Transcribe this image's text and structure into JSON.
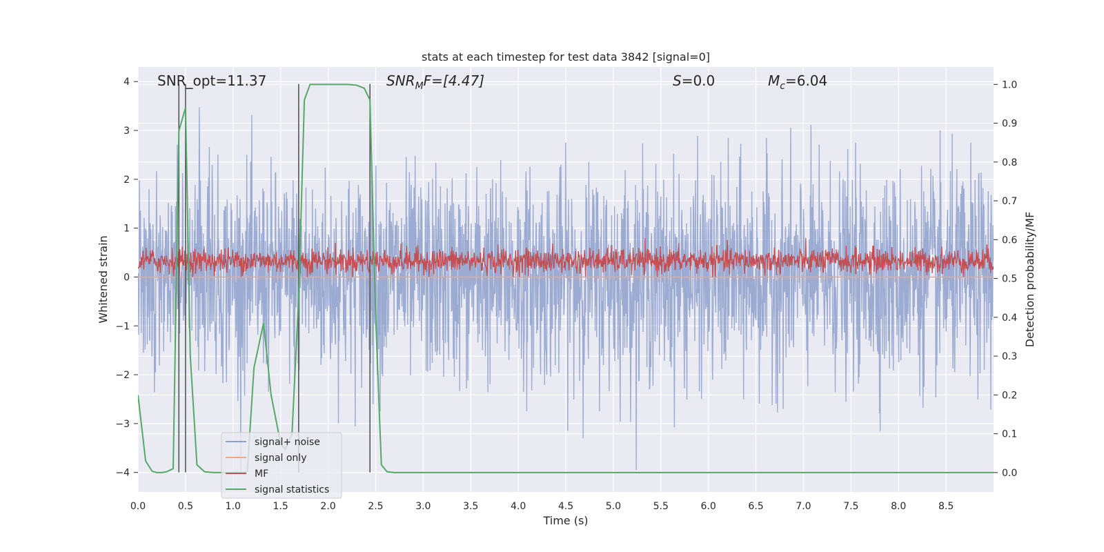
{
  "chart_data": {
    "type": "line",
    "title": "stats at each timestep for test data 3842 [signal=0]",
    "xlabel": "Time (s)",
    "ylabel_left": "Whitened strain",
    "ylabel_right": "Detection probability/MF",
    "xlim": [
      0,
      9.0
    ],
    "ylim_left": [
      -4.4,
      4.3
    ],
    "ylim_right": [
      -0.05,
      1.045
    ],
    "x_ticks": [
      "0.0",
      "0.5",
      "1.0",
      "1.5",
      "2.0",
      "2.5",
      "3.0",
      "3.5",
      "4.0",
      "4.5",
      "5.0",
      "5.5",
      "6.0",
      "6.5",
      "7.0",
      "7.5",
      "8.0",
      "8.5"
    ],
    "y_left_ticks": [
      "4",
      "3",
      "2",
      "1",
      "0",
      "−1",
      "−2",
      "−3",
      "−4"
    ],
    "y_right_ticks": [
      "1.0",
      "0.9",
      "0.8",
      "0.7",
      "0.6",
      "0.5",
      "0.4",
      "0.3",
      "0.2",
      "0.1",
      "0.0"
    ],
    "grid": true,
    "legend_position": "lower-left",
    "annotations": {
      "snr_opt": "SNR_opt=11.37",
      "snr_mf_sym": "SNR",
      "snr_mf_sub": "M",
      "snr_mf_rest": "F=[4.47]",
      "s_sym": "S",
      "s_rest": "=0.0",
      "mc_sym": "M",
      "mc_sub": "c",
      "mc_rest": "=6.04"
    },
    "vertical_lines_x": [
      0.43,
      0.5,
      1.69,
      2.44
    ],
    "series": [
      {
        "name": "signal+ noise",
        "color": "#8da0cb",
        "axis": "left",
        "amplitude_range": [
          -4.0,
          3.9
        ]
      },
      {
        "name": "signal only",
        "color": "#f4a582",
        "axis": "left",
        "values": "flat (signal=0)"
      },
      {
        "name": "MF",
        "color": "#c44e52",
        "axis": "left",
        "typical_range": [
          0.0,
          1.0
        ]
      },
      {
        "name": "signal statistics",
        "color": "#55a868",
        "axis": "right",
        "x": [
          0.0,
          0.08,
          0.15,
          0.2,
          0.25,
          0.3,
          0.37,
          0.43,
          0.5,
          0.55,
          0.62,
          0.7,
          0.8,
          0.9,
          1.0,
          1.1,
          1.15,
          1.22,
          1.32,
          1.4,
          1.5,
          1.55,
          1.62,
          1.69,
          1.75,
          1.81,
          1.9,
          2.0,
          2.1,
          2.2,
          2.3,
          2.38,
          2.44,
          2.5,
          2.56,
          2.62,
          2.7,
          3.0,
          4.0,
          5.0,
          6.0,
          7.0,
          8.0,
          9.0
        ],
        "y": [
          0.2,
          0.03,
          0.003,
          0.0,
          0.0,
          0.002,
          0.01,
          0.88,
          0.94,
          0.3,
          0.02,
          0.002,
          0.0,
          0.0,
          0.0,
          0.0,
          0.003,
          0.27,
          0.385,
          0.2,
          0.075,
          0.06,
          0.1,
          0.45,
          0.96,
          1.0,
          1.0,
          1.0,
          1.0,
          1.0,
          0.998,
          0.99,
          0.96,
          0.4,
          0.02,
          0.002,
          0.0,
          0.0,
          0.0,
          0.0,
          0.0,
          0.0,
          0.0,
          0.0
        ]
      }
    ]
  }
}
